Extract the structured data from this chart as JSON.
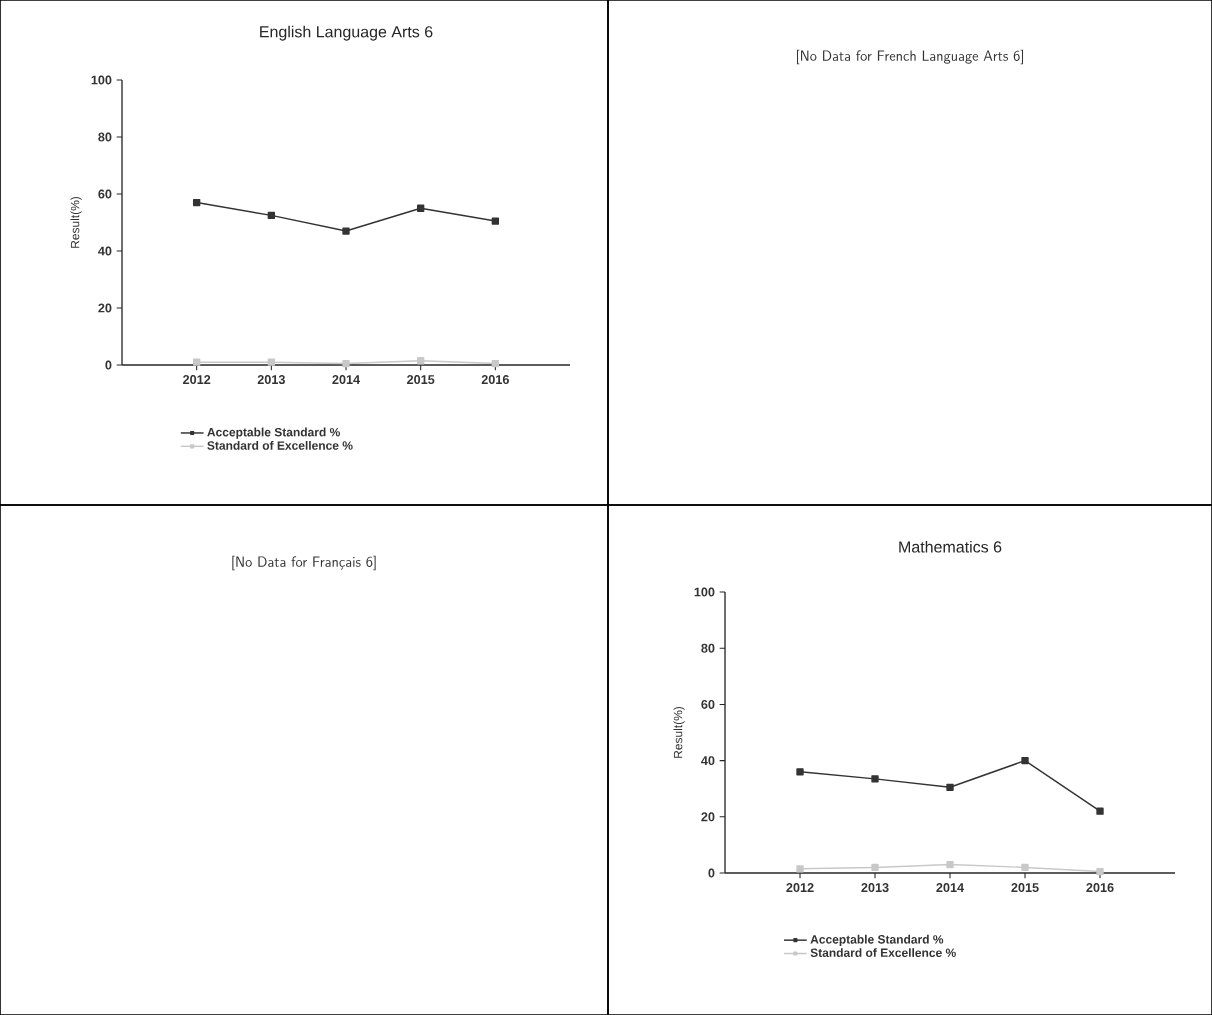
{
  "chart_data": [
    {
      "type": "line",
      "title": "English Language Arts 6",
      "ylabel": "Result(%)",
      "categories": [
        "2012",
        "2013",
        "2014",
        "2015",
        "2016"
      ],
      "series": [
        {
          "name": "Acceptable Standard %",
          "color": "#333333",
          "values": [
            57,
            52.5,
            47,
            55,
            50.5
          ]
        },
        {
          "name": "Standard of Excellence %",
          "color": "#c8c8c8",
          "values": [
            1,
            1,
            0.5,
            1.5,
            0.5
          ]
        }
      ],
      "ylim": [
        0,
        100
      ],
      "yticks": [
        0,
        20,
        40,
        60,
        80,
        100
      ],
      "grid": false,
      "legend": "bottom",
      "marker": "square",
      "line_style": "solid"
    },
    {
      "type": "other",
      "title": "[No Data for French Language Arts 6]"
    },
    {
      "type": "other",
      "title": "[No Data for Français 6]"
    },
    {
      "type": "line",
      "title": "Mathematics 6",
      "ylabel": "Result(%)",
      "categories": [
        "2012",
        "2013",
        "2014",
        "2015",
        "2016"
      ],
      "series": [
        {
          "name": "Acceptable Standard %",
          "color": "#333333",
          "values": [
            36,
            33.5,
            30.5,
            40,
            22
          ]
        },
        {
          "name": "Standard of Excellence %",
          "color": "#c8c8c8",
          "values": [
            1.5,
            2,
            3,
            2,
            0.5
          ]
        }
      ],
      "ylim": [
        0,
        100
      ],
      "yticks": [
        0,
        20,
        40,
        60,
        80,
        100
      ],
      "grid": false,
      "legend": "bottom",
      "marker": "square",
      "line_style": "solid"
    }
  ]
}
